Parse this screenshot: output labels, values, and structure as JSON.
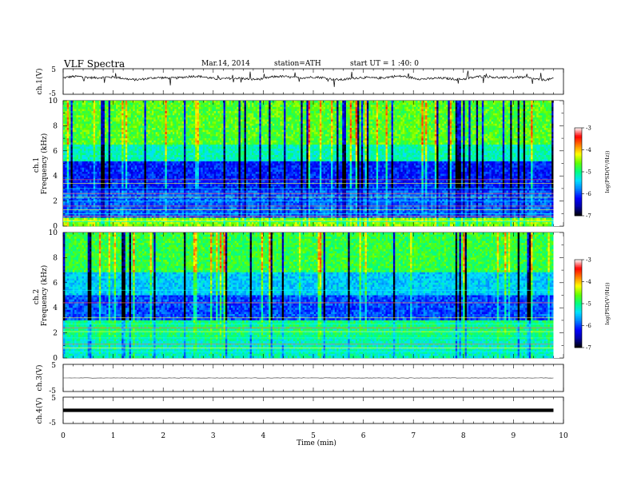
{
  "header": {
    "title": "VLF  Spectra",
    "date": "Mar.14, 2014",
    "station": "station=ATH",
    "start_ut": "start  UT =   1 :40: 0"
  },
  "chart_data": [
    {
      "panel": "ch1-waveform",
      "type": "line",
      "ylabel": "ch.1(V)",
      "ylim": [
        -5,
        5
      ],
      "yticks": [
        "5",
        "-5"
      ],
      "xlim": [
        0,
        10
      ],
      "approx_level": 1.4,
      "approx_noise_range": [
        0.5,
        2.3
      ],
      "data_end_min": 9.8
    },
    {
      "panel": "ch1-spectrogram",
      "type": "heatmap",
      "ylabel": "ch.1\nFrequency  (kHz)",
      "ylim": [
        0,
        10
      ],
      "yticks": [
        "0",
        "2",
        "4",
        "6",
        "8",
        "10"
      ],
      "xlim": [
        0,
        10
      ],
      "data_end_min": 9.8,
      "color_scale": {
        "label": "log(PSD(V²/Hz))",
        "range": [
          -7,
          -3
        ],
        "ticks": [
          "-3",
          "-4",
          "-5",
          "-6",
          "-7"
        ]
      }
    },
    {
      "panel": "ch2-spectrogram",
      "type": "heatmap",
      "ylabel": "ch.2\nFrequency  (kHz)",
      "ylim": [
        0,
        10
      ],
      "yticks": [
        "0",
        "2",
        "4",
        "6",
        "8",
        "10"
      ],
      "xlim": [
        0,
        10
      ],
      "data_end_min": 9.8,
      "color_scale": {
        "label": "log(PSD(V²/Hz))",
        "range": [
          -7,
          -3
        ],
        "ticks": [
          "-3",
          "-4",
          "-5",
          "-6",
          "-7"
        ]
      }
    },
    {
      "panel": "ch3-waveform",
      "type": "line",
      "ylabel": "ch.3(V)",
      "ylim": [
        -5,
        5
      ],
      "yticks": [
        "5",
        "-5"
      ],
      "approx_level": 0,
      "data_end_min": 9.8
    },
    {
      "panel": "ch4-waveform",
      "type": "line",
      "ylabel": "ch.4(V)",
      "ylim": [
        -5,
        5
      ],
      "yticks": [
        "5",
        "-5"
      ],
      "approx_level": 0,
      "data_end_min": 9.8
    }
  ],
  "xaxis": {
    "label": "Time  (min)",
    "ticks": [
      "0",
      "1",
      "2",
      "3",
      "4",
      "5",
      "6",
      "7",
      "8",
      "9",
      "10"
    ]
  },
  "colors": {
    "scale": [
      "#000000",
      "#0000a0",
      "#0000ff",
      "#0080ff",
      "#00e0ff",
      "#00ff80",
      "#60ff00",
      "#ffff00",
      "#ff8000",
      "#ff0000",
      "#ffffff"
    ]
  }
}
